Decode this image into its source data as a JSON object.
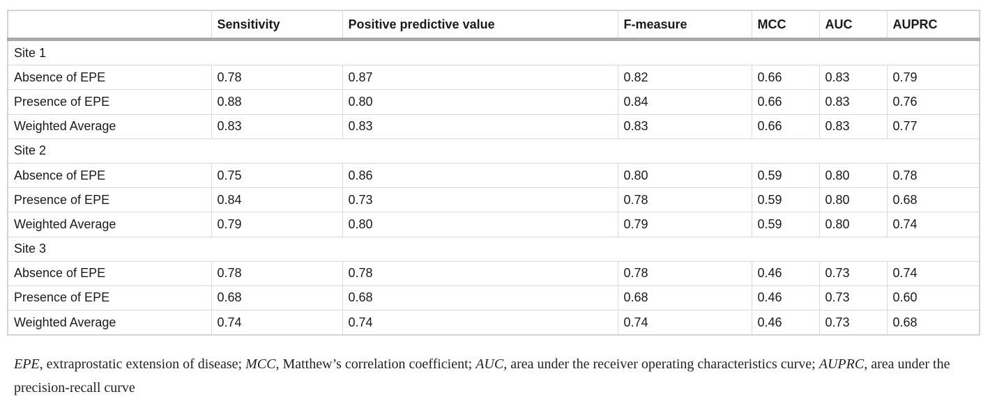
{
  "table": {
    "headers": [
      "",
      "Sensitivity",
      "Positive predictive value",
      "F-measure",
      "MCC",
      "AUC",
      "AUPRC"
    ],
    "groups": [
      {
        "label": "Site 1",
        "rows": [
          {
            "label": "Absence of EPE",
            "values": [
              "0.78",
              "0.87",
              "0.82",
              "0.66",
              "0.83",
              "0.79"
            ]
          },
          {
            "label": "Presence of EPE",
            "values": [
              "0.88",
              "0.80",
              "0.84",
              "0.66",
              "0.83",
              "0.76"
            ]
          },
          {
            "label": "Weighted Average",
            "values": [
              "0.83",
              "0.83",
              "0.83",
              "0.66",
              "0.83",
              "0.77"
            ]
          }
        ]
      },
      {
        "label": "Site 2",
        "rows": [
          {
            "label": "Absence of EPE",
            "values": [
              "0.75",
              "0.86",
              "0.80",
              "0.59",
              "0.80",
              "0.78"
            ]
          },
          {
            "label": "Presence of EPE",
            "values": [
              "0.84",
              "0.73",
              "0.78",
              "0.59",
              "0.80",
              "0.68"
            ]
          },
          {
            "label": "Weighted Average",
            "values": [
              "0.79",
              "0.80",
              "0.79",
              "0.59",
              "0.80",
              "0.74"
            ]
          }
        ]
      },
      {
        "label": "Site 3",
        "rows": [
          {
            "label": "Absence of EPE",
            "values": [
              "0.78",
              "0.78",
              "0.78",
              "0.46",
              "0.73",
              "0.74"
            ]
          },
          {
            "label": "Presence of EPE",
            "values": [
              "0.68",
              "0.68",
              "0.68",
              "0.46",
              "0.73",
              "0.60"
            ]
          },
          {
            "label": "Weighted Average",
            "values": [
              "0.74",
              "0.74",
              "0.74",
              "0.46",
              "0.73",
              "0.68"
            ]
          }
        ]
      }
    ]
  },
  "footnote": [
    {
      "abbr": "EPE",
      "text": ", extraprostatic extension of disease; "
    },
    {
      "abbr": "MCC",
      "text": ", Matthew’s correlation coefficient; "
    },
    {
      "abbr": "AUC",
      "text": ", area under the receiver operating characteristics curve; "
    },
    {
      "abbr": "AUPRC",
      "text": ", area under the precision-recall curve"
    }
  ]
}
